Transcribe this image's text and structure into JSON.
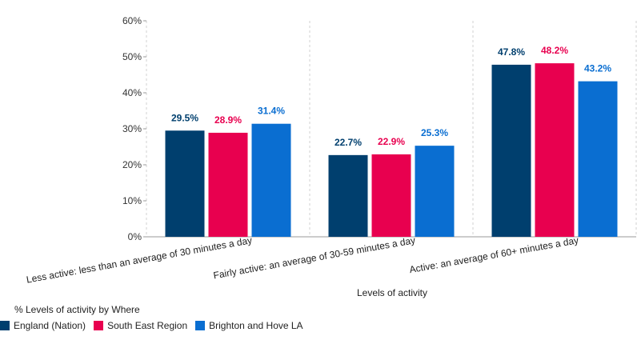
{
  "chart_data": {
    "type": "bar",
    "categories": [
      "Less active: less than an average of 30 minutes a day",
      "Fairly active: an average of 30-59 minutes a day",
      "Active: an average of 60+ minutes a day"
    ],
    "series": [
      {
        "name": "England (Nation)",
        "color": "#003f6e",
        "values": [
          29.5,
          22.7,
          47.8
        ]
      },
      {
        "name": "South East Region",
        "color": "#e8004f",
        "values": [
          28.9,
          22.9,
          48.2
        ]
      },
      {
        "name": "Brighton and Hove LA",
        "color": "#0a6ed1",
        "values": [
          31.4,
          25.3,
          43.2
        ]
      }
    ],
    "xlabel": "Levels of activity",
    "ylabel": "",
    "ylim": [
      0,
      60
    ],
    "yticks": [
      "0%",
      "10%",
      "20%",
      "30%",
      "40%",
      "50%",
      "60%"
    ],
    "value_suffix": "%",
    "grid": "vertical dashed separators",
    "legend_title": "% Levels of activity by Where",
    "legend_position": "bottom-left"
  }
}
